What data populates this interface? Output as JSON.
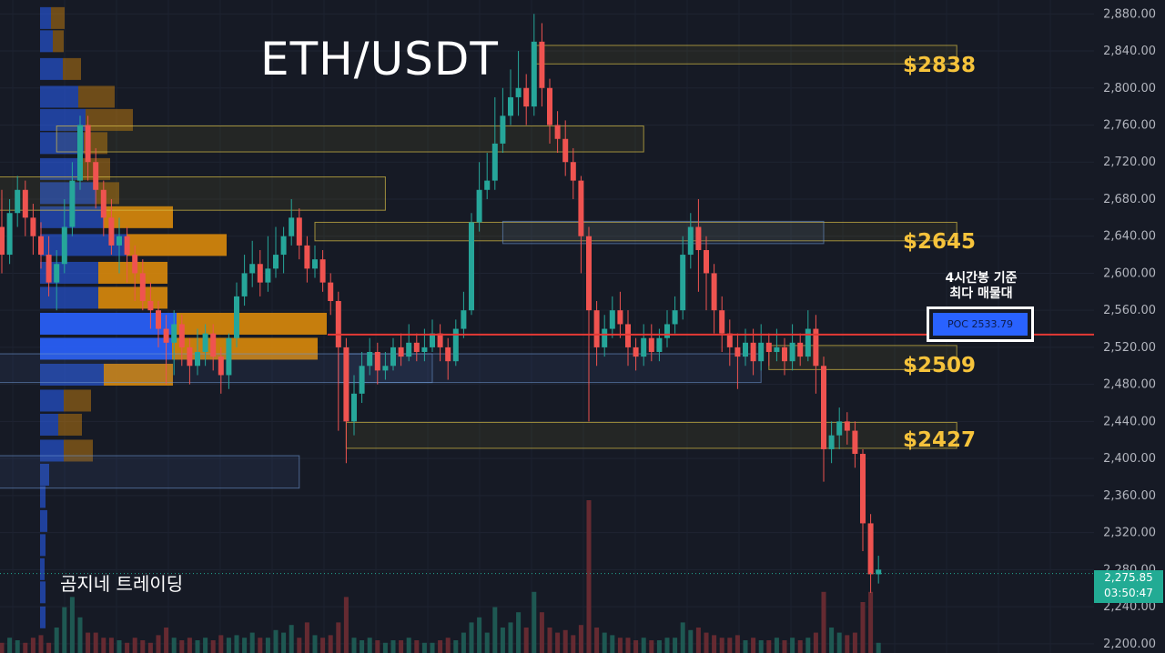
{
  "title": "ETH/USDT",
  "author": "곰지네 트레이딩",
  "poc": {
    "note_line1": "4시간봉 기준",
    "note_line2": "최다 매물대",
    "label": "POC",
    "value": "2533.79"
  },
  "levels": [
    {
      "label": "$2838",
      "price": 2838
    },
    {
      "label": "$2645",
      "price": 2645
    },
    {
      "label": "$2509",
      "price": 2509
    },
    {
      "label": "$2427",
      "price": 2427
    }
  ],
  "current": {
    "price": "2,275.85",
    "countdown": "03:50:47"
  },
  "colors": {
    "background": "#161a25",
    "up": "#26a69a",
    "down": "#ef5350",
    "level_label": "#f6c33b",
    "poc_line": "#e53935",
    "vp_blue": "#2962ff",
    "vp_orange": "#d98a0b",
    "price_tag": "#22ab94"
  },
  "chart_data": {
    "type": "candlestick",
    "symbol": "ETH/USDT",
    "y_axis": {
      "ticks": [
        "2,880.00",
        "2,840.00",
        "2,800.00",
        "2,760.00",
        "2,720.00",
        "2,680.00",
        "2,640.00",
        "2,600.00",
        "2,560.00",
        "2,520.00",
        "2,480.00",
        "2,440.00",
        "2,400.00",
        "2,360.00",
        "2,320.00",
        "2,280.00",
        "2,240.00",
        "2,200.00"
      ],
      "range": [
        2190,
        2895
      ]
    },
    "poc_price": 2533.79,
    "last_price": 2275.85,
    "levels": [
      2838,
      2645,
      2509,
      2427
    ],
    "candles": [
      [
        2650,
        2620,
        2690,
        2600
      ],
      [
        2620,
        2665,
        2680,
        2610
      ],
      [
        2665,
        2690,
        2705,
        2650
      ],
      [
        2690,
        2660,
        2700,
        2640
      ],
      [
        2660,
        2640,
        2675,
        2620
      ],
      [
        2640,
        2620,
        2655,
        2605
      ],
      [
        2620,
        2590,
        2640,
        2575
      ],
      [
        2590,
        2610,
        2625,
        2560
      ],
      [
        2610,
        2650,
        2680,
        2600
      ],
      [
        2650,
        2700,
        2720,
        2640
      ],
      [
        2700,
        2760,
        2770,
        2690
      ],
      [
        2760,
        2720,
        2770,
        2700
      ],
      [
        2720,
        2690,
        2735,
        2670
      ],
      [
        2690,
        2660,
        2700,
        2640
      ],
      [
        2660,
        2630,
        2680,
        2620
      ],
      [
        2630,
        2640,
        2660,
        2600
      ],
      [
        2640,
        2620,
        2650,
        2590
      ],
      [
        2620,
        2600,
        2630,
        2570
      ],
      [
        2600,
        2570,
        2615,
        2560
      ],
      [
        2570,
        2560,
        2590,
        2540
      ],
      [
        2560,
        2540,
        2570,
        2520
      ],
      [
        2540,
        2525,
        2555,
        2480
      ],
      [
        2525,
        2545,
        2560,
        2490
      ],
      [
        2545,
        2520,
        2555,
        2500
      ],
      [
        2520,
        2500,
        2530,
        2480
      ],
      [
        2500,
        2515,
        2540,
        2490
      ],
      [
        2515,
        2535,
        2545,
        2500
      ],
      [
        2535,
        2510,
        2545,
        2495
      ],
      [
        2510,
        2490,
        2520,
        2470
      ],
      [
        2490,
        2530,
        2535,
        2475
      ],
      [
        2530,
        2575,
        2590,
        2520
      ],
      [
        2575,
        2600,
        2620,
        2565
      ],
      [
        2600,
        2610,
        2635,
        2585
      ],
      [
        2610,
        2590,
        2625,
        2575
      ],
      [
        2590,
        2605,
        2640,
        2580
      ],
      [
        2605,
        2620,
        2650,
        2595
      ],
      [
        2620,
        2640,
        2650,
        2600
      ],
      [
        2640,
        2660,
        2680,
        2630
      ],
      [
        2660,
        2630,
        2670,
        2615
      ],
      [
        2630,
        2605,
        2640,
        2590
      ],
      [
        2605,
        2615,
        2630,
        2595
      ],
      [
        2615,
        2590,
        2625,
        2580
      ],
      [
        2590,
        2570,
        2600,
        2555
      ],
      [
        2570,
        2520,
        2580,
        2430
      ],
      [
        2520,
        2440,
        2530,
        2395
      ],
      [
        2440,
        2470,
        2490,
        2425
      ],
      [
        2470,
        2500,
        2515,
        2460
      ],
      [
        2500,
        2515,
        2530,
        2490
      ],
      [
        2515,
        2495,
        2525,
        2480
      ],
      [
        2495,
        2500,
        2515,
        2485
      ],
      [
        2500,
        2520,
        2530,
        2495
      ],
      [
        2520,
        2510,
        2535,
        2500
      ],
      [
        2510,
        2525,
        2545,
        2505
      ],
      [
        2525,
        2515,
        2535,
        2505
      ],
      [
        2515,
        2520,
        2540,
        2505
      ],
      [
        2520,
        2535,
        2550,
        2515
      ],
      [
        2535,
        2520,
        2545,
        2505
      ],
      [
        2520,
        2505,
        2530,
        2485
      ],
      [
        2505,
        2540,
        2550,
        2500
      ],
      [
        2540,
        2560,
        2580,
        2530
      ],
      [
        2560,
        2655,
        2665,
        2555
      ],
      [
        2655,
        2690,
        2720,
        2645
      ],
      [
        2690,
        2700,
        2730,
        2680
      ],
      [
        2700,
        2740,
        2790,
        2690
      ],
      [
        2740,
        2770,
        2800,
        2730
      ],
      [
        2770,
        2790,
        2820,
        2760
      ],
      [
        2790,
        2800,
        2840,
        2770
      ],
      [
        2800,
        2780,
        2815,
        2760
      ],
      [
        2780,
        2850,
        2880,
        2770
      ],
      [
        2850,
        2800,
        2870,
        2780
      ],
      [
        2800,
        2760,
        2810,
        2740
      ],
      [
        2760,
        2745,
        2775,
        2730
      ],
      [
        2745,
        2720,
        2765,
        2705
      ],
      [
        2720,
        2700,
        2735,
        2680
      ],
      [
        2700,
        2640,
        2705,
        2600
      ],
      [
        2640,
        2560,
        2650,
        2440
      ],
      [
        2560,
        2520,
        2570,
        2500
      ],
      [
        2520,
        2540,
        2555,
        2510
      ],
      [
        2540,
        2560,
        2575,
        2530
      ],
      [
        2560,
        2545,
        2580,
        2530
      ],
      [
        2545,
        2520,
        2560,
        2500
      ],
      [
        2520,
        2510,
        2530,
        2495
      ],
      [
        2510,
        2530,
        2545,
        2500
      ],
      [
        2530,
        2515,
        2545,
        2505
      ],
      [
        2515,
        2530,
        2540,
        2505
      ],
      [
        2530,
        2545,
        2560,
        2520
      ],
      [
        2545,
        2560,
        2575,
        2535
      ],
      [
        2560,
        2620,
        2640,
        2550
      ],
      [
        2620,
        2650,
        2665,
        2605
      ],
      [
        2650,
        2625,
        2680,
        2580
      ],
      [
        2625,
        2600,
        2640,
        2560
      ],
      [
        2600,
        2560,
        2610,
        2535
      ],
      [
        2560,
        2535,
        2575,
        2515
      ],
      [
        2535,
        2520,
        2550,
        2500
      ],
      [
        2520,
        2510,
        2535,
        2475
      ],
      [
        2510,
        2525,
        2540,
        2500
      ],
      [
        2525,
        2505,
        2540,
        2490
      ],
      [
        2505,
        2525,
        2545,
        2495
      ],
      [
        2525,
        2515,
        2535,
        2500
      ],
      [
        2515,
        2520,
        2540,
        2505
      ],
      [
        2520,
        2505,
        2530,
        2490
      ],
      [
        2505,
        2525,
        2545,
        2495
      ],
      [
        2525,
        2510,
        2535,
        2500
      ],
      [
        2510,
        2540,
        2560,
        2505
      ],
      [
        2540,
        2500,
        2555,
        2470
      ],
      [
        2500,
        2410,
        2510,
        2375
      ],
      [
        2410,
        2425,
        2440,
        2395
      ],
      [
        2425,
        2440,
        2455,
        2410
      ],
      [
        2440,
        2430,
        2450,
        2415
      ],
      [
        2430,
        2405,
        2440,
        2390
      ],
      [
        2405,
        2330,
        2410,
        2300
      ],
      [
        2330,
        2275,
        2340,
        2255
      ],
      [
        2275,
        2280,
        2295,
        2265
      ]
    ],
    "volume_profile": [
      {
        "price": 2875,
        "buy": 12,
        "sell": 15
      },
      {
        "price": 2850,
        "buy": 14,
        "sell": 12
      },
      {
        "price": 2820,
        "buy": 25,
        "sell": 20
      },
      {
        "price": 2790,
        "buy": 42,
        "sell": 40
      },
      {
        "price": 2765,
        "buy": 50,
        "sell": 52
      },
      {
        "price": 2740,
        "buy": 48,
        "sell": 26
      },
      {
        "price": 2712,
        "buy": 44,
        "sell": 33
      },
      {
        "price": 2686,
        "buy": 62,
        "sell": 25
      },
      {
        "price": 2660,
        "buy": 70,
        "sell": 76
      },
      {
        "price": 2630,
        "buy": 95,
        "sell": 110
      },
      {
        "price": 2600,
        "buy": 64,
        "sell": 76
      },
      {
        "price": 2573,
        "buy": 64,
        "sell": 76
      },
      {
        "price": 2545,
        "buy": 150,
        "sell": 165
      },
      {
        "price": 2518,
        "buy": 145,
        "sell": 160
      },
      {
        "price": 2490,
        "buy": 70,
        "sell": 76
      },
      {
        "price": 2462,
        "buy": 26,
        "sell": 30
      },
      {
        "price": 2436,
        "buy": 20,
        "sell": 26
      },
      {
        "price": 2408,
        "buy": 26,
        "sell": 32
      },
      {
        "price": 2382,
        "buy": 10,
        "sell": 0
      },
      {
        "price": 2358,
        "buy": 6,
        "sell": 0
      },
      {
        "price": 2332,
        "buy": 8,
        "sell": 0
      },
      {
        "price": 2306,
        "buy": 6,
        "sell": 0
      },
      {
        "price": 2280,
        "buy": 5,
        "sell": 0
      },
      {
        "price": 2255,
        "buy": 6,
        "sell": 0
      },
      {
        "price": 2228,
        "buy": 6,
        "sell": 0
      }
    ],
    "zones": [
      {
        "top": 2846,
        "bottom": 2826,
        "from": 68,
        "to": 122,
        "color": "yellow"
      },
      {
        "top": 2759,
        "bottom": 2731,
        "from": 7,
        "to": 82,
        "color": "yellow"
      },
      {
        "top": 2704,
        "bottom": 2668,
        "from": -10,
        "to": 49,
        "color": "yellow"
      },
      {
        "top": 2655,
        "bottom": 2635,
        "from": 40,
        "to": 122,
        "color": "yellow"
      },
      {
        "top": 2656,
        "bottom": 2632,
        "from": 64,
        "to": 105,
        "color": "blue"
      },
      {
        "top": 2522,
        "bottom": 2496,
        "from": 98,
        "to": 122,
        "color": "yellow"
      },
      {
        "top": 2513,
        "bottom": 2482,
        "from": -10,
        "to": 55,
        "color": "blue"
      },
      {
        "top": 2513,
        "bottom": 2482,
        "from": 43,
        "to": 97,
        "color": "blue"
      },
      {
        "top": 2439,
        "bottom": 2411,
        "from": 44,
        "to": 122,
        "color": "yellow"
      },
      {
        "top": 2403,
        "bottom": 2368,
        "from": -10,
        "to": 38,
        "color": "blue"
      }
    ],
    "volume": [
      [
        0,
        0.2
      ],
      [
        1,
        0.3
      ],
      [
        2,
        0.25
      ],
      [
        3,
        0.2
      ],
      [
        4,
        0.3
      ],
      [
        5,
        0.35
      ],
      [
        6,
        0.2
      ],
      [
        7,
        0.5
      ],
      [
        8,
        0.9
      ],
      [
        9,
        1.1
      ],
      [
        10,
        0.7
      ],
      [
        11,
        0.4
      ],
      [
        12,
        0.4
      ],
      [
        13,
        0.3
      ],
      [
        14,
        0.3
      ],
      [
        15,
        0.25
      ],
      [
        16,
        0.2
      ],
      [
        17,
        0.3
      ],
      [
        18,
        0.25
      ],
      [
        19,
        0.2
      ],
      [
        20,
        0.35
      ],
      [
        21,
        0.5
      ],
      [
        22,
        0.3
      ],
      [
        23,
        0.25
      ],
      [
        24,
        0.3
      ],
      [
        25,
        0.25
      ],
      [
        26,
        0.3
      ],
      [
        27,
        0.25
      ],
      [
        28,
        0.35
      ],
      [
        29,
        0.3
      ],
      [
        30,
        0.35
      ],
      [
        31,
        0.3
      ],
      [
        32,
        0.4
      ],
      [
        33,
        0.3
      ],
      [
        34,
        0.3
      ],
      [
        35,
        0.45
      ],
      [
        36,
        0.4
      ],
      [
        37,
        0.55
      ],
      [
        38,
        0.3
      ],
      [
        39,
        0.6
      ],
      [
        40,
        0.35
      ],
      [
        41,
        0.3
      ],
      [
        42,
        0.35
      ],
      [
        43,
        0.6
      ],
      [
        44,
        1.1
      ],
      [
        45,
        0.3
      ],
      [
        46,
        0.25
      ],
      [
        47,
        0.3
      ],
      [
        48,
        0.25
      ],
      [
        49,
        0.2
      ],
      [
        50,
        0.25
      ],
      [
        51,
        0.25
      ],
      [
        52,
        0.3
      ],
      [
        53,
        0.25
      ],
      [
        54,
        0.2
      ],
      [
        55,
        0.2
      ],
      [
        56,
        0.25
      ],
      [
        57,
        0.3
      ],
      [
        58,
        0.25
      ],
      [
        59,
        0.4
      ],
      [
        60,
        0.6
      ],
      [
        61,
        0.7
      ],
      [
        62,
        0.4
      ],
      [
        63,
        0.9
      ],
      [
        64,
        0.5
      ],
      [
        65,
        0.6
      ],
      [
        66,
        0.8
      ],
      [
        67,
        0.5
      ],
      [
        68,
        1.2
      ],
      [
        69,
        0.8
      ],
      [
        70,
        0.5
      ],
      [
        71,
        0.4
      ],
      [
        72,
        0.45
      ],
      [
        73,
        0.35
      ],
      [
        74,
        0.55
      ],
      [
        75,
        3.0
      ],
      [
        76,
        0.5
      ],
      [
        77,
        0.4
      ],
      [
        78,
        0.35
      ],
      [
        79,
        0.3
      ],
      [
        80,
        0.3
      ],
      [
        81,
        0.25
      ],
      [
        82,
        0.3
      ],
      [
        83,
        0.25
      ],
      [
        84,
        0.25
      ],
      [
        85,
        0.3
      ],
      [
        86,
        0.3
      ],
      [
        87,
        0.6
      ],
      [
        88,
        0.45
      ],
      [
        89,
        0.5
      ],
      [
        90,
        0.4
      ],
      [
        91,
        0.35
      ],
      [
        92,
        0.3
      ],
      [
        93,
        0.3
      ],
      [
        94,
        0.35
      ],
      [
        95,
        0.25
      ],
      [
        96,
        0.3
      ],
      [
        97,
        0.25
      ],
      [
        98,
        0.25
      ],
      [
        99,
        0.3
      ],
      [
        100,
        0.25
      ],
      [
        101,
        0.3
      ],
      [
        102,
        0.25
      ],
      [
        103,
        0.3
      ],
      [
        104,
        0.4
      ],
      [
        105,
        1.2
      ],
      [
        106,
        0.5
      ],
      [
        107,
        0.4
      ],
      [
        108,
        0.35
      ],
      [
        109,
        0.4
      ],
      [
        110,
        1.0
      ],
      [
        111,
        1.2
      ],
      [
        112,
        0.2
      ]
    ]
  }
}
